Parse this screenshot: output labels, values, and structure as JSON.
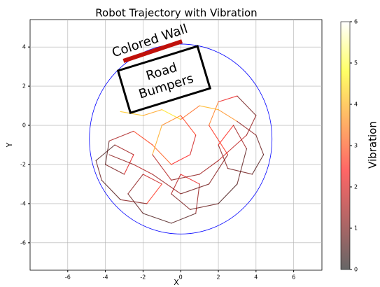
{
  "chart_data": {
    "type": "trajectory",
    "title": "Robot Trajectory with Vibration",
    "xlabel": "X",
    "ylabel": "Y",
    "xlim": [
      -8,
      7.5
    ],
    "ylim": [
      -7.4,
      5.4
    ],
    "xticks": [
      -6,
      -4,
      -2,
      0,
      2,
      4,
      6
    ],
    "yticks": [
      -6,
      -4,
      -2,
      0,
      2,
      4
    ],
    "grid": true,
    "colormap": "hot",
    "colorbar": {
      "label": "Vibration",
      "lim": [
        0,
        6
      ],
      "ticks": [
        0,
        1,
        2,
        3,
        4,
        5,
        6
      ]
    },
    "circle": {
      "center": [
        0,
        -0.7
      ],
      "radius": 4.85,
      "color": "blue"
    },
    "wall": {
      "text": "Colored Wall",
      "x": [
        -3.04,
        0.07
      ],
      "y": [
        3.29,
        4.29
      ],
      "color": "#c0100a"
    },
    "bumpers": {
      "lines": [
        "Road",
        "Bumpers"
      ],
      "x": [
        -3.33,
        0.89,
        1.56,
        -2.67
      ],
      "y": [
        2.79,
        4.04,
        1.89,
        0.64
      ]
    },
    "x": [
      -3.2,
      -2,
      -1,
      0,
      1,
      2,
      3,
      4,
      4.4,
      3.8,
      2.5,
      2,
      2.8,
      3.5,
      3,
      2,
      0.5,
      -0.5,
      0,
      1,
      0.8,
      -0.5,
      -2,
      -2.8,
      -2,
      -1,
      -1.8,
      -3.2,
      -4.2,
      -4.5,
      -3.5,
      -2.5,
      -3,
      -4,
      -3.8,
      -2.5,
      -1.5,
      -0.5,
      0.5,
      0.8,
      0,
      -1,
      -1.5,
      -0.5,
      1,
      2,
      3.5,
      4,
      3,
      2,
      1.5,
      2.5,
      1.5,
      0,
      -1.5,
      -2.5,
      -3.8
    ],
    "y": [
      0.7,
      0.5,
      0.8,
      0.3,
      1,
      0.8,
      0.2,
      -0.5,
      -1.5,
      -2.5,
      -2.2,
      -1,
      0,
      -1.2,
      -3,
      -4,
      -4.3,
      -3.5,
      -2.5,
      -3,
      -4.5,
      -5,
      -4.5,
      -3.5,
      -2.5,
      -3,
      -4,
      -3.8,
      -2.8,
      -1.8,
      -1,
      -1.5,
      -2.5,
      -2,
      -0.8,
      -0.3,
      -1,
      -2,
      -1.5,
      -0.5,
      0.5,
      0,
      -1.5,
      -2.8,
      -2.5,
      -1.8,
      -0.5,
      0.5,
      1.5,
      1.2,
      0,
      -1.5,
      -3,
      -3.5,
      -2.5,
      -2,
      -1.5
    ],
    "vibration": [
      4.2,
      3.8,
      4.5,
      3.2,
      4,
      3.6,
      1.2,
      0.8,
      0.6,
      0.9,
      1.1,
      2.5,
      1.4,
      0.7,
      0.5,
      0.8,
      1,
      1.6,
      2.2,
      1.3,
      0.6,
      0.5,
      0.7,
      1.2,
      1.8,
      2.6,
      1.1,
      0.6,
      0.8,
      0.5,
      1.4,
      2.1,
      1,
      0.6,
      1.5,
      2.8,
      3.1,
      2.4,
      1.9,
      2.7,
      3.5,
      3.9,
      1.6,
      1.2,
      1.4,
      1.7,
      1.3,
      0.9,
      2.2,
      3.4,
      2.6,
      1.1,
      0.9,
      1.3,
      1.6,
      1.2,
      0.8
    ]
  }
}
